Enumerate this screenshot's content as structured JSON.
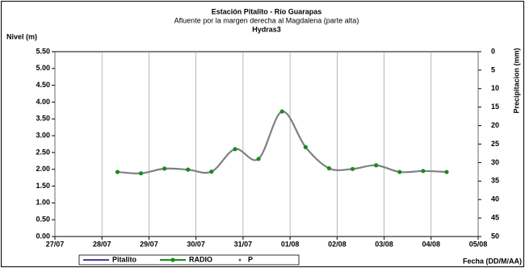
{
  "chart_data": {
    "type": "line",
    "title": "Estación Pitalito - Río Guarapas",
    "subtitle": "Afluente por la margen derecha al Magdalena (parte alta)",
    "source": "Hydras3",
    "y_label": "Nivel (m)",
    "y2_label": "Precipitacion (mm)",
    "x_label": "Fecha (DD/M/AA)",
    "x": [
      1.33,
      1.83,
      2.33,
      2.83,
      3.33,
      3.83,
      4.33,
      4.83,
      5.33,
      5.83,
      6.33,
      6.83,
      7.33,
      7.83,
      8.33
    ],
    "series": [
      {
        "name": "RADIO",
        "color": "#808080",
        "marker_color": "#1a8c1a",
        "values": [
          1.92,
          1.88,
          2.02,
          1.99,
          1.93,
          2.6,
          2.31,
          3.72,
          2.66,
          2.03,
          2.01,
          2.12,
          1.92,
          1.95,
          1.92
        ]
      }
    ],
    "legend": [
      {
        "name": "Pitalito",
        "color": "#000080",
        "style": "line"
      },
      {
        "name": "RADIO",
        "color": "#1a8c1a",
        "style": "line-marker"
      },
      {
        "name": "P",
        "color": "#1a8c1a",
        "style": "marker"
      }
    ],
    "xlim": [
      0,
      9
    ],
    "xticks": [
      {
        "value": 0,
        "label": "27/07"
      },
      {
        "value": 1,
        "label": "28/07"
      },
      {
        "value": 2,
        "label": "29/07"
      },
      {
        "value": 3,
        "label": "30/07"
      },
      {
        "value": 4,
        "label": "31/07"
      },
      {
        "value": 5,
        "label": "01/08"
      },
      {
        "value": 6,
        "label": "02/08"
      },
      {
        "value": 7,
        "label": "03/08"
      },
      {
        "value": 8,
        "label": "04/08"
      },
      {
        "value": 9,
        "label": "05/08"
      }
    ],
    "ylim": [
      0,
      5.5
    ],
    "yticks": [
      {
        "value": 0,
        "label": "0.00"
      },
      {
        "value": 0.5,
        "label": "0.50"
      },
      {
        "value": 1,
        "label": "1.00"
      },
      {
        "value": 1.5,
        "label": "1.50"
      },
      {
        "value": 2,
        "label": "2.00"
      },
      {
        "value": 2.5,
        "label": "2.50"
      },
      {
        "value": 3,
        "label": "3.00"
      },
      {
        "value": 3.5,
        "label": "3.50"
      },
      {
        "value": 4,
        "label": "4.00"
      },
      {
        "value": 4.5,
        "label": "4.50"
      },
      {
        "value": 5,
        "label": "5.00"
      },
      {
        "value": 5.5,
        "label": "5.50"
      }
    ],
    "y2lim": [
      50,
      0
    ],
    "y2ticks": [
      0,
      5,
      10,
      15,
      20,
      25,
      30,
      35,
      40,
      45,
      50
    ],
    "x_grid": true
  }
}
